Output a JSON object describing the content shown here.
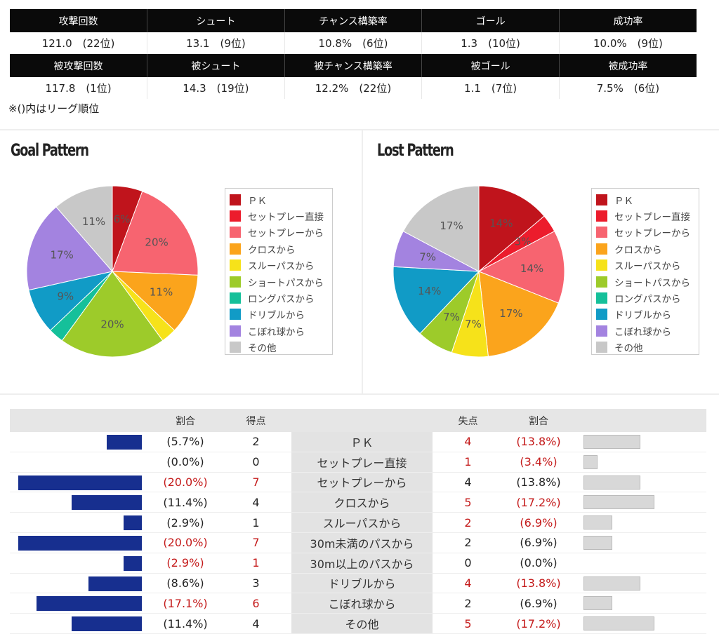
{
  "stats": {
    "attack_headers": [
      "攻撃回数",
      "シュート",
      "チャンス構築率",
      "ゴール",
      "成功率"
    ],
    "attack_values": [
      "121.0　(22位)",
      "13.1　(9位)",
      "10.8%　(6位)",
      "1.3　(10位)",
      "10.0%　(9位)"
    ],
    "defense_headers": [
      "被攻撃回数",
      "被シュート",
      "被チャンス構築率",
      "被ゴール",
      "被成功率"
    ],
    "defense_values": [
      "117.8　(1位)",
      "14.3　(19位)",
      "12.2%　(22位)",
      "1.1　(7位)",
      "7.5%　(6位)"
    ],
    "note": "※()内はリーグ順位"
  },
  "legend": {
    "items": [
      "ＰＫ",
      "セットプレー直接",
      "セットプレーから",
      "クロスから",
      "スルーパスから",
      "ショートパスから",
      "ロングパスから",
      "ドリブルから",
      "こぼれ球から",
      "その他"
    ],
    "colors": [
      "#c0141c",
      "#ec1c2c",
      "#f76470",
      "#fba41c",
      "#f6e21a",
      "#9dcb2a",
      "#15c09a",
      "#119bc6",
      "#a383e0",
      "#c8c8c8"
    ]
  },
  "chart_data": [
    {
      "type": "pie",
      "title": "Goal Pattern",
      "categories": [
        "ＰＫ",
        "セットプレー直接",
        "セットプレーから",
        "クロスから",
        "スルーパスから",
        "ショートパスから",
        "ロングパスから",
        "ドリブルから",
        "こぼれ球から",
        "その他"
      ],
      "values": [
        5.7,
        0.0,
        20.0,
        11.4,
        2.9,
        20.0,
        2.9,
        8.6,
        17.1,
        11.4
      ],
      "data_labels": [
        "6%",
        "",
        "20%",
        "11%",
        "",
        "20%",
        "",
        "9%",
        "17%",
        "11%"
      ]
    },
    {
      "type": "pie",
      "title": "Lost Pattern",
      "categories": [
        "ＰＫ",
        "セットプレー直接",
        "セットプレーから",
        "クロスから",
        "スルーパスから",
        "ショートパスから",
        "ロングパスから",
        "ドリブルから",
        "こぼれ球から",
        "その他"
      ],
      "values": [
        13.8,
        3.4,
        13.8,
        17.2,
        6.9,
        6.9,
        0.0,
        13.8,
        6.9,
        17.2
      ],
      "data_labels": [
        "14%",
        "3%",
        "14%",
        "17%",
        "7%",
        "7%",
        "",
        "14%",
        "7%",
        "17%"
      ]
    },
    {
      "type": "table",
      "headers": {
        "ratio": "割合",
        "scored": "得点",
        "conceded": "失点"
      },
      "rows": [
        {
          "cat": "ＰＫ",
          "g_pct": "(5.7%)",
          "g": "2",
          "g_val": 5.7,
          "g_red": false,
          "l": "4",
          "l_pct": "(13.8%)",
          "l_val": 13.8,
          "l_red": true
        },
        {
          "cat": "セットプレー直接",
          "g_pct": "(0.0%)",
          "g": "0",
          "g_val": 0,
          "g_red": false,
          "l": "1",
          "l_pct": "(3.4%)",
          "l_val": 3.4,
          "l_red": true
        },
        {
          "cat": "セットプレーから",
          "g_pct": "(20.0%)",
          "g": "7",
          "g_val": 20.0,
          "g_red": true,
          "l": "4",
          "l_pct": "(13.8%)",
          "l_val": 13.8,
          "l_red": false
        },
        {
          "cat": "クロスから",
          "g_pct": "(11.4%)",
          "g": "4",
          "g_val": 11.4,
          "g_red": false,
          "l": "5",
          "l_pct": "(17.2%)",
          "l_val": 17.2,
          "l_red": true
        },
        {
          "cat": "スルーパスから",
          "g_pct": "(2.9%)",
          "g": "1",
          "g_val": 2.9,
          "g_red": false,
          "l": "2",
          "l_pct": "(6.9%)",
          "l_val": 6.9,
          "l_red": true
        },
        {
          "cat": "30m未満のパスから",
          "g_pct": "(20.0%)",
          "g": "7",
          "g_val": 20.0,
          "g_red": true,
          "l": "2",
          "l_pct": "(6.9%)",
          "l_val": 6.9,
          "l_red": false
        },
        {
          "cat": "30m以上のパスから",
          "g_pct": "(2.9%)",
          "g": "1",
          "g_val": 2.9,
          "g_red": true,
          "l": "0",
          "l_pct": "(0.0%)",
          "l_val": 0,
          "l_red": false
        },
        {
          "cat": "ドリブルから",
          "g_pct": "(8.6%)",
          "g": "3",
          "g_val": 8.6,
          "g_red": false,
          "l": "4",
          "l_pct": "(13.8%)",
          "l_val": 13.8,
          "l_red": true
        },
        {
          "cat": "こぼれ球から",
          "g_pct": "(17.1%)",
          "g": "6",
          "g_val": 17.1,
          "g_red": true,
          "l": "2",
          "l_pct": "(6.9%)",
          "l_val": 6.9,
          "l_red": false
        },
        {
          "cat": "その他",
          "g_pct": "(11.4%)",
          "g": "4",
          "g_val": 11.4,
          "g_red": false,
          "l": "5",
          "l_pct": "(17.2%)",
          "l_val": 17.2,
          "l_red": true
        }
      ]
    }
  ]
}
